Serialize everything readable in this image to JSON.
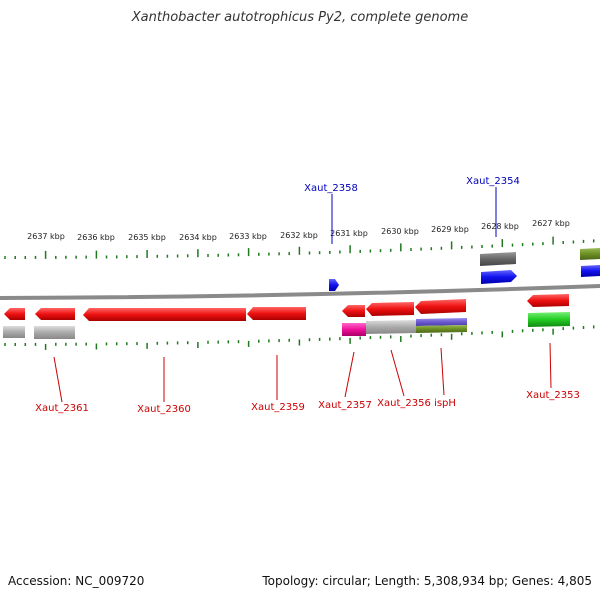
{
  "title": "Xanthobacter autotrophicus Py2, complete genome",
  "footer": {
    "accession": "Accession: NC_009720",
    "summary": "Topology: circular; Length: 5,308,934 bp; Genes: 4,805"
  },
  "colors": {
    "backbone": "#8a8a8a",
    "tick": "#1f7a1f",
    "label_red": "#cc0000",
    "label_blue": "#0000bb",
    "gene_red": "#ee1111",
    "gene_blue": "#1111ee",
    "gene_grey": "#aaaaaa",
    "gene_darkgrey": "#666666",
    "gene_magenta": "#ee1199",
    "gene_green": "#22cc22",
    "gene_olive": "#6b8e23",
    "gene_slateblue": "#6a5acd"
  },
  "scale_labels": [
    "2637 kbp",
    "2636 kbp",
    "2635 kbp",
    "2634 kbp",
    "2633 kbp",
    "2632 kbp",
    "2631 kbp",
    "2630 kbp",
    "2629 kbp",
    "2628 kbp",
    "2627 kbp"
  ],
  "gene_labels": [
    {
      "text": "Xaut_2358",
      "color": "blue"
    },
    {
      "text": "Xaut_2354",
      "color": "blue"
    },
    {
      "text": "Xaut_2361",
      "color": "red"
    },
    {
      "text": "Xaut_2360",
      "color": "red"
    },
    {
      "text": "Xaut_2359",
      "color": "red"
    },
    {
      "text": "Xaut_2357",
      "color": "red"
    },
    {
      "text": "Xaut_2356",
      "color": "red"
    },
    {
      "text": "ispH",
      "color": "red"
    },
    {
      "text": "Xaut_2353",
      "color": "red"
    }
  ]
}
